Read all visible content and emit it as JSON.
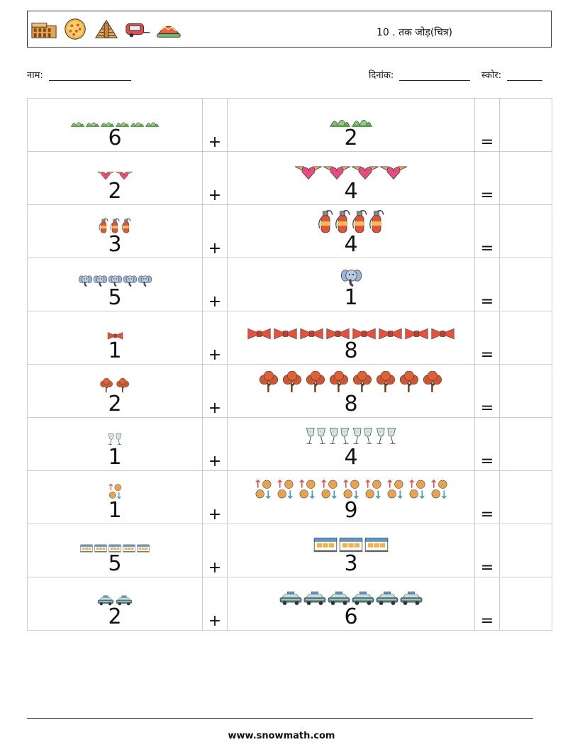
{
  "header": {
    "icons": [
      "colosseum-icon",
      "pizza-icon",
      "pyramid-icon",
      "camper-van-icon",
      "easter-egg-icon"
    ],
    "title": "10 . तक जोड़(चित्र)"
  },
  "info": {
    "name_label": "नाम:",
    "date_label": "दिनांक:",
    "score_label": "स्कोर:"
  },
  "operators": {
    "plus": "+",
    "equals": "="
  },
  "problems": [
    {
      "a": "6",
      "b": "2",
      "icon": "grass-icon"
    },
    {
      "a": "2",
      "b": "4",
      "icon": "winged-heart-icon"
    },
    {
      "a": "3",
      "b": "4",
      "icon": "fire-extinguisher-icon"
    },
    {
      "a": "5",
      "b": "1",
      "icon": "elephant-icon"
    },
    {
      "a": "1",
      "b": "8",
      "icon": "bow-tie-icon"
    },
    {
      "a": "2",
      "b": "8",
      "icon": "tree-icon"
    },
    {
      "a": "1",
      "b": "4",
      "icon": "toast-glasses-icon"
    },
    {
      "a": "1",
      "b": "9",
      "icon": "coin-arrows-icon"
    },
    {
      "a": "5",
      "b": "3",
      "icon": "shop-icon"
    },
    {
      "a": "2",
      "b": "6",
      "icon": "police-car-icon"
    }
  ],
  "footer": {
    "site": "www.snowmath.com"
  }
}
